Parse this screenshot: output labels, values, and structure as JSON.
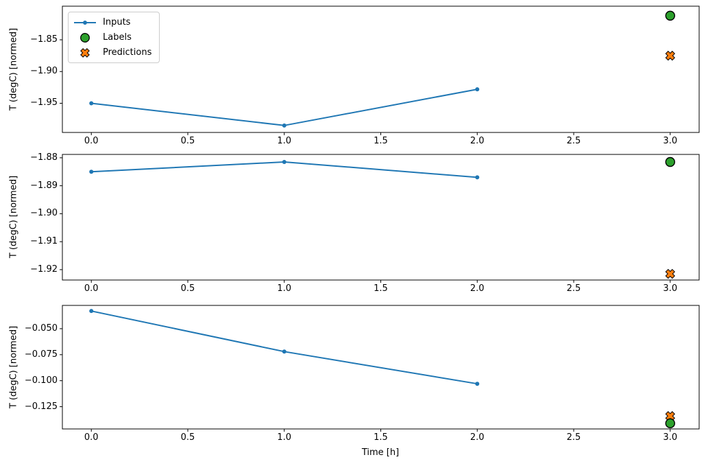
{
  "figure": {
    "background": "#ffffff"
  },
  "colors": {
    "inputs": "#1f77b4",
    "labels": "#2ca02c",
    "predictions": "#ff7f0e",
    "marker_edge": "#000000",
    "axis": "#000000"
  },
  "legend": {
    "position": "upper left",
    "items": [
      {
        "label": "Inputs",
        "marker": "line-dot",
        "color": "#1f77b4"
      },
      {
        "label": "Labels",
        "marker": "circle",
        "color": "#2ca02c"
      },
      {
        "label": "Predictions",
        "marker": "X",
        "color": "#ff7f0e"
      }
    ]
  },
  "chart_data": [
    {
      "type": "line",
      "ylabel": "T (degC) [normed]",
      "xlabel": "",
      "xlim": [
        -0.15,
        3.15
      ],
      "ylim": [
        -1.996,
        -1.797
      ],
      "grid": false,
      "xticks": [
        {
          "v": 0.0,
          "label": "0.0"
        },
        {
          "v": 0.5,
          "label": "0.5"
        },
        {
          "v": 1.0,
          "label": "1.0"
        },
        {
          "v": 1.5,
          "label": "1.5"
        },
        {
          "v": 2.0,
          "label": "2.0"
        },
        {
          "v": 2.5,
          "label": "2.5"
        },
        {
          "v": 3.0,
          "label": "3.0"
        }
      ],
      "yticks": [
        {
          "v": -1.85,
          "label": "−1.85"
        },
        {
          "v": -1.9,
          "label": "−1.90"
        },
        {
          "v": -1.95,
          "label": "−1.95"
        }
      ],
      "series": [
        {
          "name": "Inputs",
          "type": "line",
          "marker": "dot",
          "x": [
            0,
            1,
            2
          ],
          "y": [
            -1.95,
            -1.985,
            -1.928
          ]
        },
        {
          "name": "Labels",
          "type": "scatter",
          "marker": "circle",
          "x": [
            3
          ],
          "y": [
            -1.812
          ]
        },
        {
          "name": "Predictions",
          "type": "scatter",
          "marker": "X",
          "x": [
            3
          ],
          "y": [
            -1.875
          ]
        }
      ]
    },
    {
      "type": "line",
      "ylabel": "T (degC) [normed]",
      "xlabel": "",
      "xlim": [
        -0.15,
        3.15
      ],
      "ylim": [
        -1.9237,
        -1.8788
      ],
      "grid": false,
      "xticks": [
        {
          "v": 0.0,
          "label": "0.0"
        },
        {
          "v": 0.5,
          "label": "0.5"
        },
        {
          "v": 1.0,
          "label": "1.0"
        },
        {
          "v": 1.5,
          "label": "1.5"
        },
        {
          "v": 2.0,
          "label": "2.0"
        },
        {
          "v": 2.5,
          "label": "2.5"
        },
        {
          "v": 3.0,
          "label": "3.0"
        }
      ],
      "yticks": [
        {
          "v": -1.88,
          "label": "−1.88"
        },
        {
          "v": -1.89,
          "label": "−1.89"
        },
        {
          "v": -1.9,
          "label": "−1.90"
        },
        {
          "v": -1.91,
          "label": "−1.91"
        },
        {
          "v": -1.92,
          "label": "−1.92"
        }
      ],
      "series": [
        {
          "name": "Inputs",
          "type": "line",
          "marker": "dot",
          "x": [
            0,
            1,
            2
          ],
          "y": [
            -1.885,
            -1.8815,
            -1.887
          ]
        },
        {
          "name": "Labels",
          "type": "scatter",
          "marker": "circle",
          "x": [
            3
          ],
          "y": [
            -1.8815
          ]
        },
        {
          "name": "Predictions",
          "type": "scatter",
          "marker": "X",
          "x": [
            3
          ],
          "y": [
            -1.9215
          ]
        }
      ]
    },
    {
      "type": "line",
      "ylabel": "T (degC) [normed]",
      "xlabel": "Time [h]",
      "xlim": [
        -0.15,
        3.15
      ],
      "ylim": [
        -0.1464,
        -0.0276
      ],
      "grid": false,
      "xticks": [
        {
          "v": 0.0,
          "label": "0.0"
        },
        {
          "v": 0.5,
          "label": "0.5"
        },
        {
          "v": 1.0,
          "label": "1.0"
        },
        {
          "v": 1.5,
          "label": "1.5"
        },
        {
          "v": 2.0,
          "label": "2.0"
        },
        {
          "v": 2.5,
          "label": "2.5"
        },
        {
          "v": 3.0,
          "label": "3.0"
        }
      ],
      "yticks": [
        {
          "v": -0.05,
          "label": "−0.050"
        },
        {
          "v": -0.075,
          "label": "−0.075"
        },
        {
          "v": -0.1,
          "label": "−0.100"
        },
        {
          "v": -0.125,
          "label": "−0.125"
        }
      ],
      "series": [
        {
          "name": "Inputs",
          "type": "line",
          "marker": "dot",
          "x": [
            0,
            1,
            2
          ],
          "y": [
            -0.033,
            -0.072,
            -0.103
          ]
        },
        {
          "name": "Labels",
          "type": "scatter",
          "marker": "circle",
          "x": [
            3
          ],
          "y": [
            -0.141
          ]
        },
        {
          "name": "Predictions",
          "type": "scatter",
          "marker": "X",
          "x": [
            3
          ],
          "y": [
            -0.134
          ]
        }
      ]
    }
  ]
}
